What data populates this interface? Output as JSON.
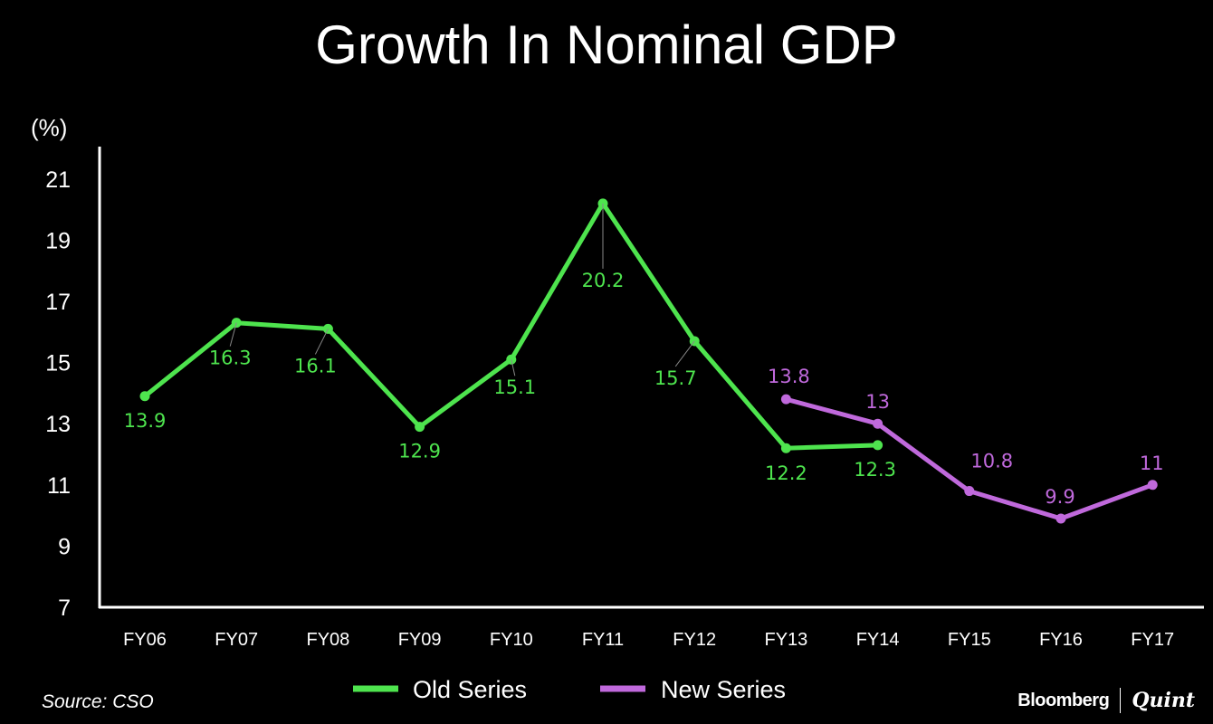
{
  "chart_data": {
    "type": "line",
    "title": "Growth In Nominal GDP",
    "ylabel": "(%)",
    "xlabel": "",
    "categories": [
      "FY06",
      "FY07",
      "FY08",
      "FY09",
      "FY10",
      "FY11",
      "FY12",
      "FY13",
      "FY14",
      "FY15",
      "FY16",
      "FY17"
    ],
    "yticks": [
      "7",
      "9",
      "11",
      "13",
      "15",
      "17",
      "19",
      "21"
    ],
    "ylim": [
      7,
      22
    ],
    "grid": false,
    "legend_position": "bottom",
    "series": [
      {
        "name": "Old Series",
        "color": "#4ee44e",
        "values": [
          13.9,
          16.3,
          16.1,
          12.9,
          15.1,
          20.2,
          15.7,
          12.2,
          12.3,
          null,
          null,
          null
        ],
        "labels": [
          "13.9",
          "16.3",
          "16.1",
          "12.9",
          "15.1",
          "20.2",
          "15.7",
          "12.2",
          "12.3",
          null,
          null,
          null
        ]
      },
      {
        "name": "New Series",
        "color": "#c069dc",
        "values": [
          null,
          null,
          null,
          null,
          null,
          null,
          null,
          13.8,
          13,
          10.8,
          9.9,
          11
        ],
        "labels": [
          null,
          null,
          null,
          null,
          null,
          null,
          null,
          "13.8",
          "13",
          "10.8",
          "9.9",
          "11"
        ]
      }
    ]
  },
  "footer": {
    "source": "Source: CSO",
    "brand_primary": "Bloomberg",
    "brand_secondary": "Quint"
  }
}
